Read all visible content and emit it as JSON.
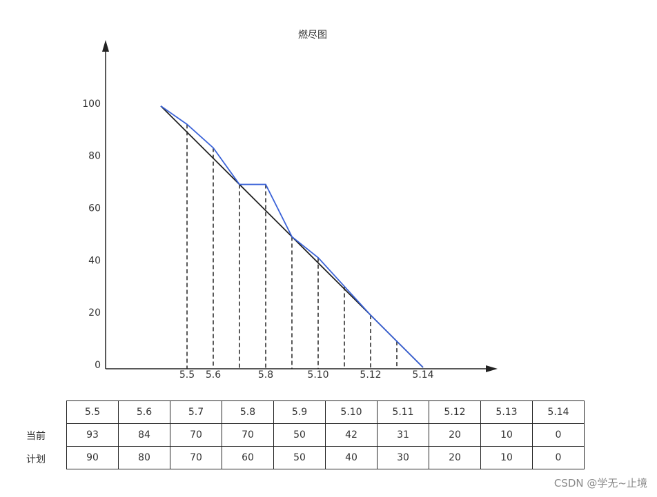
{
  "chart_data": {
    "type": "line",
    "title": "燃尽图",
    "categories": [
      null,
      "5.5",
      "5.6",
      null,
      "5.8",
      null,
      "5.10",
      null,
      "5.12",
      null,
      "5.14"
    ],
    "series": [
      {
        "color": "#3b63d8",
        "values": [
          100,
          93,
          84,
          70,
          70,
          50,
          42,
          31,
          20,
          10,
          0
        ]
      },
      {
        "color": "#222222",
        "values": [
          100,
          90,
          80,
          70,
          60,
          50,
          40,
          30,
          20,
          10,
          0
        ]
      }
    ],
    "ylim": [
      0,
      125
    ],
    "yticks": [
      0,
      20,
      40,
      60,
      80,
      100
    ],
    "grid": false,
    "drop_lines": true
  },
  "table": {
    "header": [
      "5.5",
      "5.6",
      "5.7",
      "5.8",
      "5.9",
      "5.10",
      "5.11",
      "5.12",
      "5.13",
      "5.14"
    ],
    "rows": [
      {
        "label": "当前",
        "cells": [
          "93",
          "84",
          "70",
          "70",
          "50",
          "42",
          "31",
          "20",
          "10",
          "0"
        ]
      },
      {
        "label": "计划",
        "cells": [
          "90",
          "80",
          "70",
          "60",
          "50",
          "40",
          "30",
          "20",
          "10",
          "0"
        ]
      }
    ]
  },
  "watermark": "CSDN @学无~止境"
}
